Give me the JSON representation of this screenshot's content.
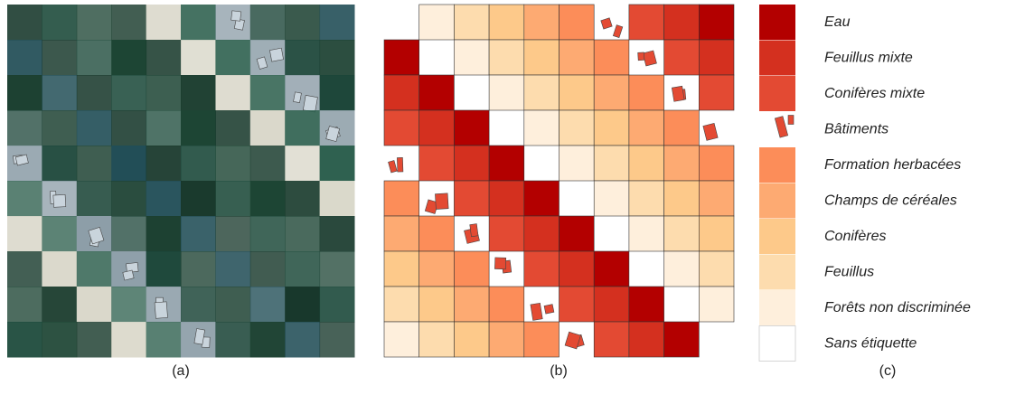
{
  "captions": {
    "a": "(a)",
    "b": "(b)",
    "c": "(c)"
  },
  "legend": [
    {
      "label": "Eau",
      "color": "#b30000"
    },
    {
      "label": "Feuillus mixte",
      "color": "#d4301f"
    },
    {
      "label": "Conifères mixte",
      "color": "#e34a33"
    },
    {
      "label": "Bâtiments",
      "color": "#e34a33"
    },
    {
      "label": "Formation herbacées",
      "color": "#fc8d59"
    },
    {
      "label": "Champs de céréales",
      "color": "#fdaa72"
    },
    {
      "label": "Conifères",
      "color": "#fdc98a"
    },
    {
      "label": "Feuillus",
      "color": "#fddcae"
    },
    {
      "label": "Forêts non discriminée",
      "color": "#feefdc"
    },
    {
      "label": "Sans étiquette",
      "color": "#ffffff"
    }
  ]
}
